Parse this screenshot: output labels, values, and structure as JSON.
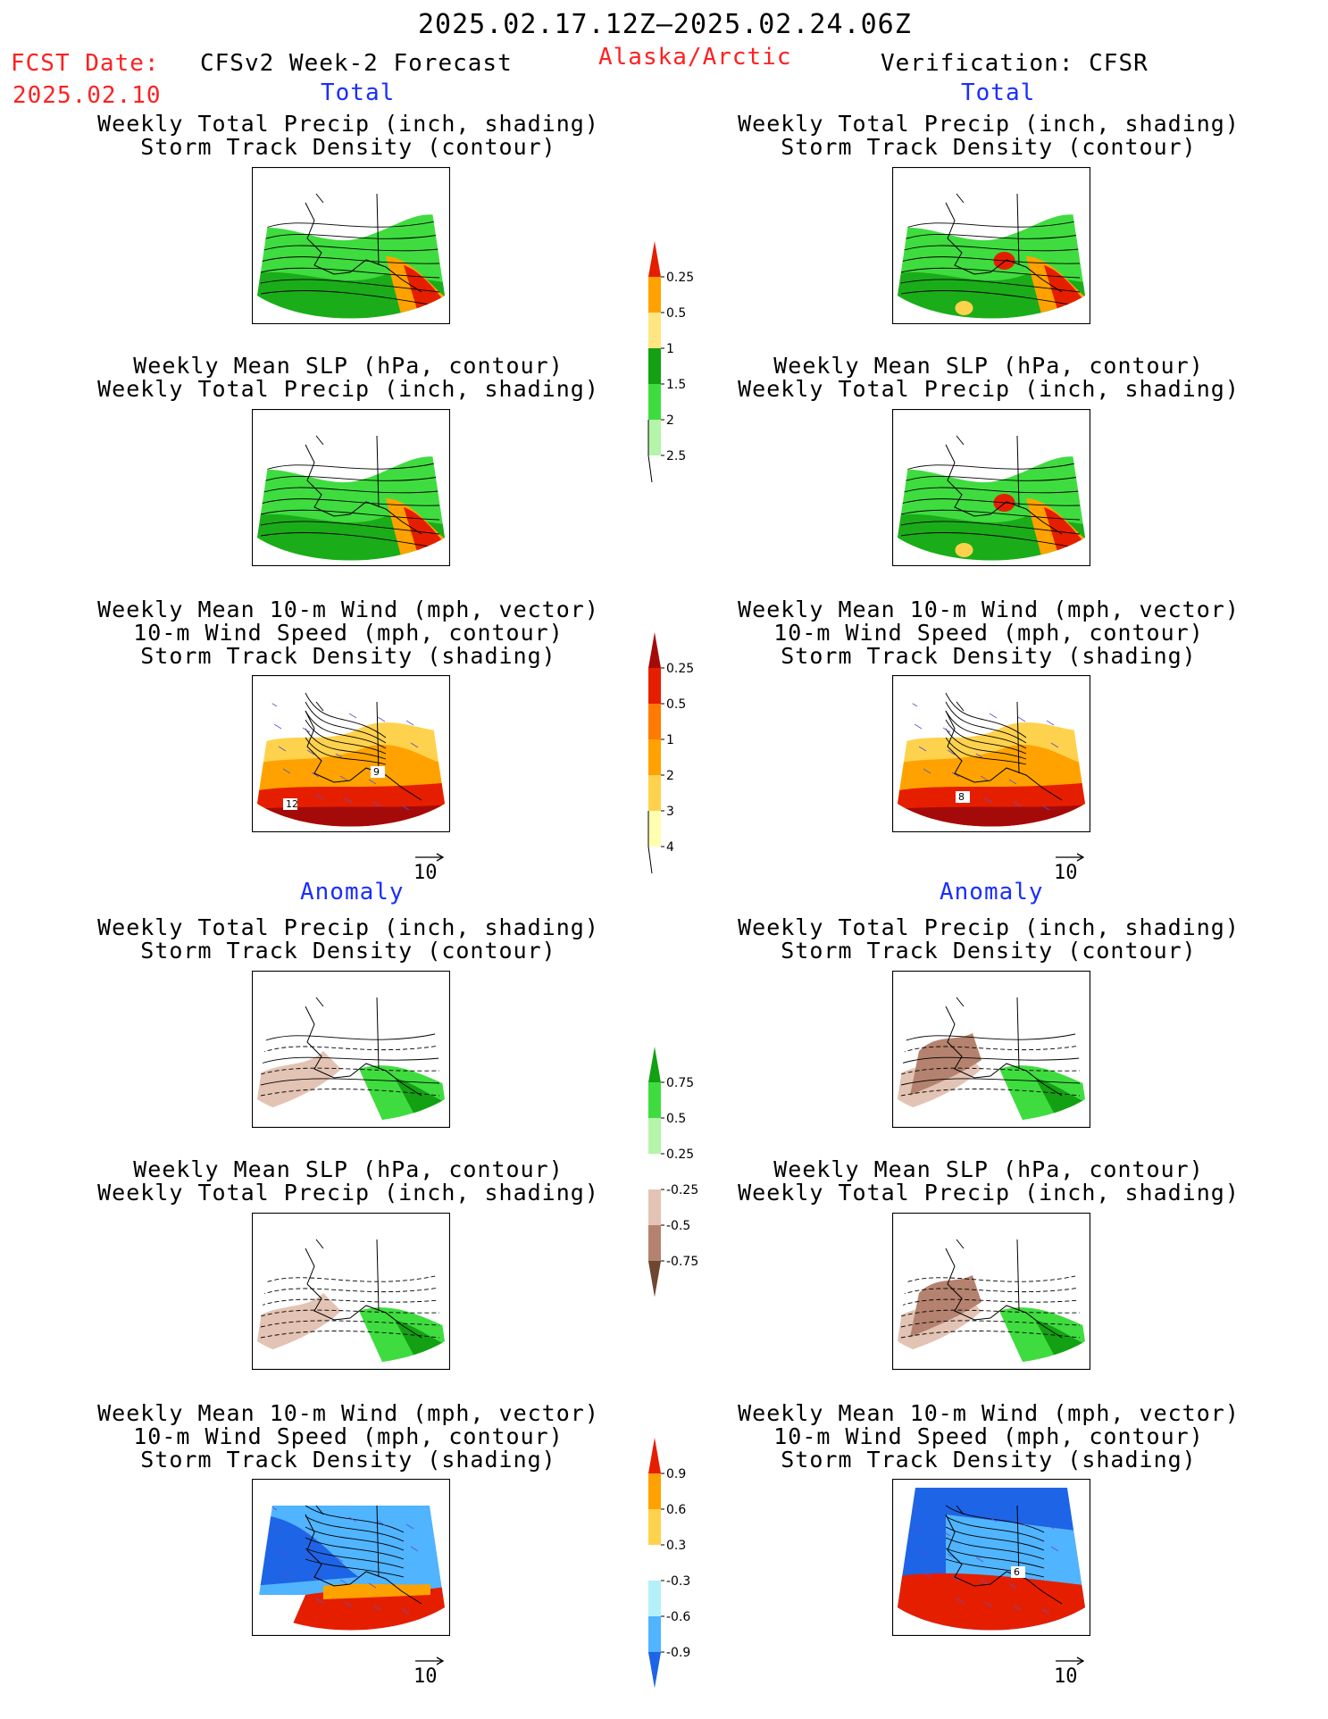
{
  "header": {
    "date_range": "2025.02.17.12Z–2025.02.24.06Z",
    "fcst_label": "FCST Date:",
    "fcst_date": "2025.02.10",
    "model": "CFSv2 Week-2 Forecast",
    "region": "Alaska/Arctic",
    "verification": "Verification: CFSR"
  },
  "sections": {
    "total": "Total",
    "anomaly": "Anomaly"
  },
  "captions": {
    "precip_storm": [
      "Weekly Total Precip (inch, shading)",
      "Storm Track Density (contour)"
    ],
    "slp_precip": [
      "Weekly Mean SLP (hPa, contour)",
      "Weekly Total Precip (inch, shading)"
    ],
    "wind_storm": [
      "Weekly Mean 10-m Wind (mph, vector)",
      "10-m Wind Speed (mph, contour)",
      "Storm Track Density (shading)"
    ]
  },
  "vector_ref": "10",
  "colors": {
    "green_dark": "#13a012",
    "green_mid": "#3fdc3f",
    "green_light": "#b4f5a9",
    "yellow": "#ffe680",
    "orange": "#ffa200",
    "red": "#e61e00",
    "darkred": "#a50a0a",
    "ylw_light": "#ffffb0",
    "ylw": "#ffd24d",
    "orange_dark": "#ff7a00",
    "brown_light": "#e3c3b4",
    "brown": "#b4826e",
    "brown_dark": "#6e4632",
    "blue_light": "#b4f0fa",
    "blue": "#50b4ff",
    "blue_dark": "#1e64e6"
  },
  "chart_data": [
    {
      "type": "colorbar",
      "name": "Total Precip / Storm Track Density (Total)",
      "levels": [
        "0.25",
        "0.5",
        "1",
        "1.5",
        "2",
        "2.5"
      ]
    },
    {
      "type": "colorbar",
      "name": "Storm Track Density (Total)",
      "levels": [
        "0.25",
        "0.5",
        "1",
        "2",
        "3",
        "4"
      ]
    },
    {
      "type": "colorbar",
      "name": "Precip Anomaly",
      "levels": [
        "0.75",
        "0.5",
        "0.25",
        "-0.25",
        "-0.5",
        "-0.75"
      ]
    },
    {
      "type": "colorbar",
      "name": "Storm Track Density Anomaly",
      "levels": [
        "0.9",
        "0.6",
        "0.3",
        "-0.3",
        "-0.6",
        "-0.9"
      ]
    }
  ],
  "map_labels": {
    "fcst_wind_a": "9",
    "fcst_wind_b": "12",
    "obs_wind": "8",
    "obs_anom": "6"
  }
}
